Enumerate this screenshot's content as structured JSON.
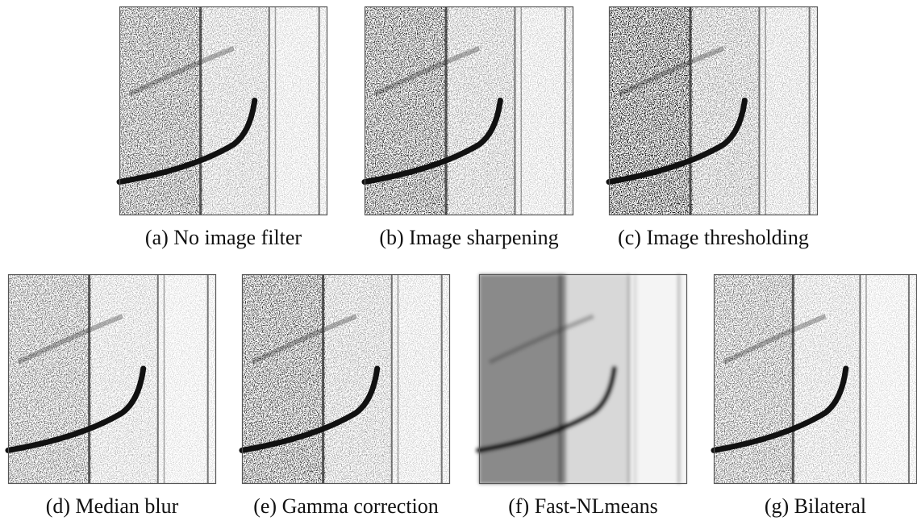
{
  "panels": [
    {
      "caption": "(a) No image filter"
    },
    {
      "caption": "(b) Image sharpening"
    },
    {
      "caption": "(c) Image thresholding"
    },
    {
      "caption": "(d) Median blur"
    },
    {
      "caption": "(e) Gamma correction"
    },
    {
      "caption": "(f) Fast-NLmeans"
    },
    {
      "caption": "(g) Bilateral"
    }
  ]
}
